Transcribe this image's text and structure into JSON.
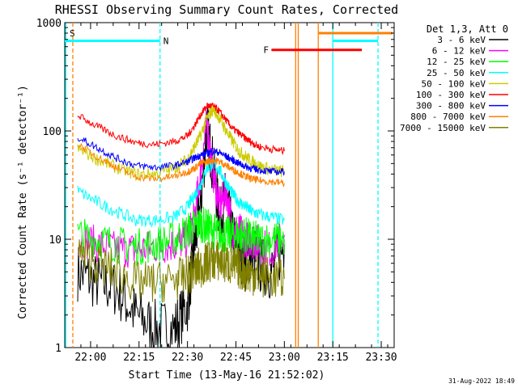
{
  "chart_data": {
    "type": "line",
    "title": "RHESSI Observing Summary Count Rates, Corrected",
    "xlabel": "Start Time (13-May-16 21:52:02)",
    "ylabel": "Corrected Count Rate (s⁻¹ detector⁻¹)",
    "yscale": "log",
    "ylim": [
      1,
      1000
    ],
    "xlim_minutes": [
      0,
      102
    ],
    "x_unit": "minutes since 21:52:02",
    "x_ticks": [
      {
        "t": 8,
        "label": "22:00"
      },
      {
        "t": 23,
        "label": "22:15"
      },
      {
        "t": 38,
        "label": "22:30"
      },
      {
        "t": 53,
        "label": "22:45"
      },
      {
        "t": 68,
        "label": "23:00"
      },
      {
        "t": 83,
        "label": "23:15"
      },
      {
        "t": 98,
        "label": "23:30"
      }
    ],
    "y_ticks": [
      {
        "v": 1,
        "label": "1"
      },
      {
        "v": 10,
        "label": "10"
      },
      {
        "v": 100,
        "label": "100"
      },
      {
        "v": 1000,
        "label": "1000"
      }
    ],
    "legend_title": "Det 1,3, Att 0",
    "legend_position": "right",
    "timestamp": "31-Aug-2022 18:49",
    "x": [
      4,
      10,
      16,
      22,
      28,
      34,
      38,
      40,
      42,
      44,
      46,
      48,
      50,
      52,
      54,
      56,
      58,
      60,
      64,
      68
    ],
    "series": [
      {
        "name": "3 - 6 keV",
        "color": "#000000",
        "values": [
          5,
          4,
          3.5,
          2,
          1.5,
          1.5,
          2.5,
          8,
          20,
          110,
          45,
          15,
          25,
          10,
          8,
          6,
          8,
          6,
          5,
          9
        ]
      },
      {
        "name": "6 - 12 keV",
        "color": "#ff00ff",
        "values": [
          10,
          9,
          8,
          8,
          8.5,
          9,
          10,
          15,
          40,
          120,
          40,
          20,
          28,
          12,
          12,
          10,
          10,
          9,
          8,
          11
        ]
      },
      {
        "name": "12 - 25 keV",
        "color": "#00ff00",
        "values": [
          11,
          10,
          9,
          8.5,
          9,
          10,
          12,
          13,
          14,
          13,
          12,
          11,
          11,
          11,
          11,
          11,
          10,
          10,
          10,
          10
        ]
      },
      {
        "name": "25 - 50 keV",
        "color": "#00ffff",
        "values": [
          28,
          22,
          18,
          15,
          15,
          16,
          20,
          25,
          32,
          45,
          50,
          43,
          33,
          26,
          22,
          20,
          18,
          17,
          16,
          15
        ]
      },
      {
        "name": "50 - 100 keV",
        "color": "#cccc00",
        "values": [
          68,
          55,
          46,
          40,
          40,
          45,
          55,
          70,
          90,
          130,
          160,
          130,
          100,
          80,
          65,
          58,
          52,
          48,
          44,
          42
        ]
      },
      {
        "name": "100 - 300 keV",
        "color": "#ff0000",
        "values": [
          140,
          110,
          90,
          78,
          75,
          80,
          90,
          110,
          140,
          170,
          170,
          150,
          125,
          105,
          95,
          85,
          78,
          72,
          68,
          65
        ]
      },
      {
        "name": "300 - 800 keV",
        "color": "#0000ff",
        "values": [
          88,
          70,
          56,
          48,
          46,
          48,
          52,
          56,
          60,
          62,
          65,
          63,
          58,
          54,
          50,
          47,
          45,
          44,
          42,
          42
        ]
      },
      {
        "name": "800 - 7000 keV",
        "color": "#ff8000",
        "values": [
          76,
          58,
          46,
          38,
          36,
          38,
          42,
          45,
          50,
          52,
          54,
          52,
          48,
          44,
          41,
          38,
          36,
          35,
          34,
          33
        ]
      },
      {
        "name": "7000 - 15000 keV",
        "color": "#808000",
        "values": [
          7.5,
          6,
          5,
          4,
          4,
          4.2,
          4.6,
          5,
          5.5,
          6,
          6.5,
          6.3,
          6,
          5.7,
          5.4,
          5,
          4.8,
          4.6,
          4.4,
          4.3
        ]
      }
    ],
    "annotations": [
      {
        "label": "S",
        "color": "#ff8000",
        "text_t": 1.5,
        "text_v": 800
      },
      {
        "label": "N",
        "color": "#00ffff",
        "text_t": 30.5,
        "text_v": 680
      },
      {
        "label": "F",
        "color": "#ff0000",
        "text_t": 61.5,
        "text_v": 560
      }
    ],
    "flare_bar": {
      "start": 64,
      "end": 92,
      "value": 560,
      "color": "#ff0000"
    },
    "state_bars": [
      {
        "start": 0,
        "end": 29.5,
        "value": 680,
        "color": "#00ffff"
      },
      {
        "start": 83,
        "end": 97,
        "value": 680,
        "color": "#00ffff"
      },
      {
        "start": 78.5,
        "end": 101.5,
        "value": 800,
        "color": "#ff8000"
      }
    ],
    "vertical_lines": [
      {
        "t": 2.5,
        "color": "#ff8000",
        "style": "dashed"
      },
      {
        "t": 29.5,
        "color": "#00ffff",
        "style": "dashed"
      },
      {
        "t": 71.5,
        "color": "#ff8000",
        "style": "solid"
      },
      {
        "t": 72.3,
        "color": "#ff8000",
        "style": "solid"
      },
      {
        "t": 78.5,
        "color": "#ff8000",
        "style": "solid"
      },
      {
        "t": 83,
        "color": "#00ffff",
        "style": "solid"
      },
      {
        "t": 97,
        "color": "#00ffff",
        "style": "dashed"
      },
      {
        "t": 0.3,
        "color": "#00ffff",
        "style": "solid"
      }
    ]
  }
}
